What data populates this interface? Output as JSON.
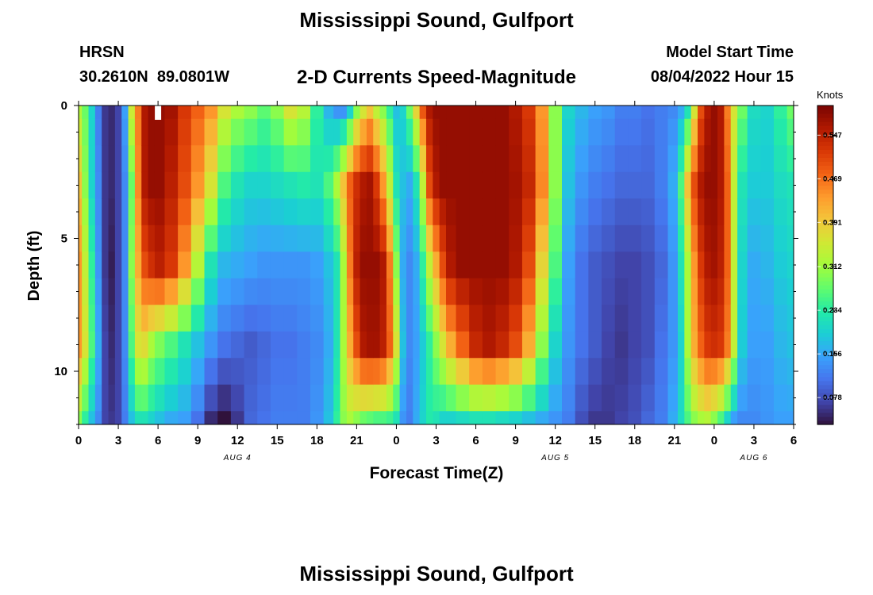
{
  "chart_data": {
    "type": "heatmap",
    "title": "Mississippi Sound, Gulfport",
    "bottom_title": "Mississippi Sound, Gulfport",
    "station_code": "HRSN",
    "station_coords": "30.2610N  89.0801W",
    "subtitle": "2-D Currents Speed-Magnitude",
    "model_start_label": "Model Start Time",
    "model_start_value": "08/04/2022 Hour 15",
    "xlabel": "Forecast Time(Z)",
    "ylabel": "Depth (ft)",
    "colorbar_label": "Knots",
    "x_range_hours": [
      0,
      54
    ],
    "y_range_ft": [
      0,
      12
    ],
    "x_ticks": [
      {
        "hour": 0,
        "label": "0"
      },
      {
        "hour": 3,
        "label": "3"
      },
      {
        "hour": 6,
        "label": "6"
      },
      {
        "hour": 9,
        "label": "9"
      },
      {
        "hour": 12,
        "label": "12"
      },
      {
        "hour": 15,
        "label": "15"
      },
      {
        "hour": 18,
        "label": "18"
      },
      {
        "hour": 21,
        "label": "21"
      },
      {
        "hour": 24,
        "label": "0"
      },
      {
        "hour": 27,
        "label": "3"
      },
      {
        "hour": 30,
        "label": "6"
      },
      {
        "hour": 33,
        "label": "9"
      },
      {
        "hour": 36,
        "label": "12"
      },
      {
        "hour": 39,
        "label": "15"
      },
      {
        "hour": 42,
        "label": "18"
      },
      {
        "hour": 45,
        "label": "21"
      },
      {
        "hour": 48,
        "label": "0"
      },
      {
        "hour": 51,
        "label": "3"
      },
      {
        "hour": 54,
        "label": "6"
      }
    ],
    "y_ticks": [
      {
        "depth": 0,
        "label": "0"
      },
      {
        "depth": 5,
        "label": "5"
      },
      {
        "depth": 10,
        "label": "10"
      }
    ],
    "day_labels": [
      {
        "hour": 12,
        "label": "AUG 4"
      },
      {
        "hour": 36,
        "label": "AUG 5"
      },
      {
        "hour": 51,
        "label": "AUG 6"
      }
    ],
    "colorbar_range": [
      0.03,
      0.6
    ],
    "colorbar_ticks": [
      0.078,
      0.156,
      0.234,
      0.312,
      0.391,
      0.469,
      0.547
    ],
    "colorbar_tick_labels": [
      "0.078",
      "0.156",
      "0.234",
      "0.312",
      "0.391",
      "0.469",
      "0.547"
    ],
    "colormap": [
      "#30123b",
      "#4145ab",
      "#4675ed",
      "#39a2fc",
      "#1bcfd4",
      "#24eca6",
      "#61fc6c",
      "#a4fc3b",
      "#d1e834",
      "#f3c63a",
      "#fe9b2d",
      "#f36315",
      "#d93806",
      "#b11901",
      "#7a0402"
    ],
    "grid_spec": {
      "depths_ft": [
        0,
        1,
        2,
        3,
        4,
        5,
        6,
        7,
        8,
        9,
        10,
        11,
        12
      ],
      "hours": [
        0,
        0.5,
        1,
        1.5,
        2,
        2.5,
        3,
        3.5,
        4,
        4.5,
        5,
        5.5,
        6,
        7,
        8,
        9,
        10,
        11,
        12,
        13,
        14,
        15,
        16,
        17,
        18,
        19,
        19.5,
        20,
        20.5,
        21,
        21.5,
        22,
        22.5,
        23,
        23.5,
        24,
        24.5,
        25,
        25.5,
        26,
        26.5,
        27,
        27.5,
        28,
        29,
        30,
        31,
        32,
        33,
        34,
        35,
        36,
        37,
        38,
        39,
        40,
        41,
        42,
        43,
        44,
        45,
        45.5,
        46,
        46.5,
        47,
        47.5,
        48,
        48.5,
        49,
        49.5,
        50,
        51,
        52,
        53,
        54
      ]
    },
    "speed_profiles_knots": {
      "0": [
        0.33,
        0.28,
        0.2,
        0.12,
        0.06,
        0.05,
        0.07,
        0.15,
        0.35,
        0.46,
        0.56,
        0.58,
        0.58,
        0.57,
        0.52,
        0.48,
        0.44,
        0.36,
        0.32,
        0.3,
        0.27,
        0.3,
        0.36,
        0.33,
        0.24,
        0.17,
        0.14,
        0.14,
        0.2,
        0.3,
        0.36,
        0.4,
        0.34,
        0.3,
        0.24,
        0.18,
        0.2,
        0.28,
        0.38,
        0.49,
        0.56,
        0.58,
        0.58,
        0.58,
        0.58,
        0.58,
        0.58,
        0.58,
        0.56,
        0.52,
        0.44,
        0.3,
        0.2,
        0.17,
        0.15,
        0.14,
        0.12,
        0.12,
        0.11,
        0.12,
        0.13,
        0.16,
        0.22,
        0.36,
        0.5,
        0.56,
        0.58,
        0.56,
        0.46,
        0.36,
        0.28,
        0.21,
        0.2,
        0.24,
        0.28
      ],
      "3": [
        0.4,
        0.3,
        0.2,
        0.13,
        0.06,
        0.05,
        0.07,
        0.13,
        0.28,
        0.45,
        0.56,
        0.58,
        0.58,
        0.55,
        0.5,
        0.44,
        0.36,
        0.26,
        0.22,
        0.2,
        0.2,
        0.21,
        0.22,
        0.23,
        0.22,
        0.26,
        0.32,
        0.4,
        0.48,
        0.53,
        0.56,
        0.57,
        0.52,
        0.44,
        0.34,
        0.22,
        0.18,
        0.16,
        0.22,
        0.34,
        0.5,
        0.56,
        0.58,
        0.58,
        0.58,
        0.58,
        0.58,
        0.58,
        0.57,
        0.54,
        0.45,
        0.3,
        0.18,
        0.14,
        0.12,
        0.11,
        0.1,
        0.1,
        0.1,
        0.12,
        0.16,
        0.26,
        0.4,
        0.5,
        0.56,
        0.58,
        0.58,
        0.56,
        0.48,
        0.34,
        0.22,
        0.19,
        0.19,
        0.21,
        0.22
      ],
      "6": [
        0.44,
        0.34,
        0.24,
        0.14,
        0.06,
        0.04,
        0.07,
        0.13,
        0.3,
        0.42,
        0.5,
        0.53,
        0.55,
        0.52,
        0.44,
        0.33,
        0.22,
        0.17,
        0.16,
        0.15,
        0.14,
        0.14,
        0.14,
        0.14,
        0.15,
        0.18,
        0.22,
        0.32,
        0.46,
        0.55,
        0.58,
        0.58,
        0.58,
        0.56,
        0.46,
        0.3,
        0.16,
        0.13,
        0.16,
        0.24,
        0.34,
        0.42,
        0.5,
        0.56,
        0.58,
        0.58,
        0.58,
        0.58,
        0.56,
        0.5,
        0.38,
        0.26,
        0.15,
        0.11,
        0.09,
        0.08,
        0.07,
        0.07,
        0.08,
        0.1,
        0.14,
        0.22,
        0.32,
        0.44,
        0.52,
        0.56,
        0.57,
        0.55,
        0.48,
        0.34,
        0.2,
        0.16,
        0.17,
        0.19,
        0.2
      ],
      "9": [
        0.44,
        0.36,
        0.26,
        0.16,
        0.07,
        0.05,
        0.07,
        0.13,
        0.26,
        0.36,
        0.37,
        0.32,
        0.29,
        0.26,
        0.22,
        0.18,
        0.14,
        0.11,
        0.1,
        0.09,
        0.1,
        0.11,
        0.11,
        0.12,
        0.13,
        0.16,
        0.22,
        0.32,
        0.42,
        0.5,
        0.56,
        0.57,
        0.57,
        0.55,
        0.48,
        0.36,
        0.18,
        0.13,
        0.15,
        0.19,
        0.24,
        0.3,
        0.36,
        0.42,
        0.48,
        0.54,
        0.56,
        0.54,
        0.5,
        0.42,
        0.3,
        0.2,
        0.14,
        0.11,
        0.09,
        0.07,
        0.06,
        0.07,
        0.08,
        0.11,
        0.14,
        0.2,
        0.32,
        0.42,
        0.48,
        0.52,
        0.53,
        0.52,
        0.46,
        0.34,
        0.19,
        0.15,
        0.15,
        0.17,
        0.18
      ],
      "12": [
        0.3,
        0.24,
        0.18,
        0.13,
        0.07,
        0.06,
        0.07,
        0.12,
        0.18,
        0.22,
        0.22,
        0.2,
        0.18,
        0.16,
        0.15,
        0.11,
        0.05,
        0.03,
        0.06,
        0.1,
        0.11,
        0.12,
        0.12,
        0.12,
        0.14,
        0.18,
        0.24,
        0.3,
        0.32,
        0.3,
        0.28,
        0.27,
        0.26,
        0.26,
        0.25,
        0.22,
        0.14,
        0.12,
        0.16,
        0.2,
        0.23,
        0.22,
        0.2,
        0.2,
        0.21,
        0.22,
        0.22,
        0.21,
        0.2,
        0.18,
        0.16,
        0.14,
        0.12,
        0.08,
        0.06,
        0.06,
        0.07,
        0.08,
        0.1,
        0.12,
        0.16,
        0.21,
        0.26,
        0.3,
        0.32,
        0.33,
        0.3,
        0.26,
        0.2,
        0.15,
        0.13,
        0.13,
        0.14,
        0.15,
        0.15
      ]
    },
    "highlight_marker_hour": 6
  }
}
